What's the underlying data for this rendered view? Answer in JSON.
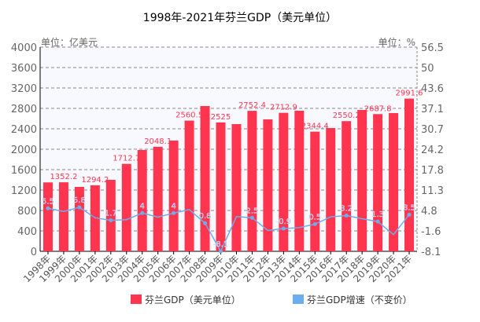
{
  "chart_data": {
    "type": "bar",
    "title": "1998年-2021年芬兰GDP（美元单位）",
    "left_unit": "单位：亿美元",
    "right_unit": "单位：%",
    "categories": [
      "1998年",
      "1999年",
      "2000年",
      "2001年",
      "2002年",
      "2003年",
      "2004年",
      "2005年",
      "2006年",
      "2007年",
      "2008年",
      "2009年",
      "2010年",
      "2011年",
      "2012年",
      "2013年",
      "2014年",
      "2015年",
      "2016年",
      "2017年",
      "2018年",
      "2019年",
      "2020年",
      "2021年"
    ],
    "left_ticks": [
      "0",
      "400",
      "800",
      "1200",
      "1600",
      "2000",
      "2400",
      "2800",
      "3200",
      "3600",
      "4000"
    ],
    "right_ticks": [
      "-8.1",
      "-1.6",
      "4.8",
      "11.3",
      "17.8",
      "24.2",
      "30.7",
      "37.1",
      "43.6",
      "50",
      "56.5"
    ],
    "ylim_left": [
      0,
      4000
    ],
    "ylim_right": [
      -8.1,
      56.5
    ],
    "grid": true,
    "legend_position": "bottom",
    "colors": {
      "bar": "#ff3550",
      "line": "#6aaef0",
      "plot_bg": "#f7f9ff"
    },
    "series": [
      {
        "name": "芬兰GDP（美元单位）",
        "type": "bar",
        "axis": "left",
        "values": [
          1350,
          1352.2,
          1262,
          1294.2,
          1400,
          1712.7,
          1985,
          2048.1,
          2169,
          2560.5,
          2846,
          2525,
          2492,
          2752.4,
          2585,
          2712.9,
          2754,
          2344.4,
          2415,
          2550.2,
          2769,
          2687.8,
          2708,
          2991.6
        ],
        "labels": [
          "",
          "1352.2",
          "",
          "1294.2",
          "",
          "1712.7",
          "",
          "2048.1",
          "",
          "2560.5",
          "",
          "2525",
          "",
          "2752.4",
          "",
          "2712.9",
          "",
          "2344.4",
          "",
          "2550.2",
          "",
          "2687.8",
          "",
          "2991.6"
        ]
      },
      {
        "name": "芬兰GDP增速（不变价）",
        "type": "line",
        "axis": "right",
        "values": [
          5.5,
          4.5,
          5.8,
          2.5,
          1.7,
          1.9,
          4,
          2.7,
          4,
          5.1,
          0.8,
          -8.1,
          2.9,
          2.5,
          -1.5,
          -0.9,
          -0.6,
          0.5,
          2.8,
          3.2,
          2.2,
          1.3,
          -2.8,
          3.5
        ],
        "labels": [
          "5.5",
          "",
          "5.8",
          "",
          "1.7",
          "",
          "4",
          "",
          "4",
          "",
          "0.8",
          "-8.1",
          "",
          "2.5",
          "",
          "-0.9",
          "",
          "0.5",
          "",
          "3.2",
          "",
          "1.3",
          "",
          "3.5"
        ]
      }
    ]
  }
}
